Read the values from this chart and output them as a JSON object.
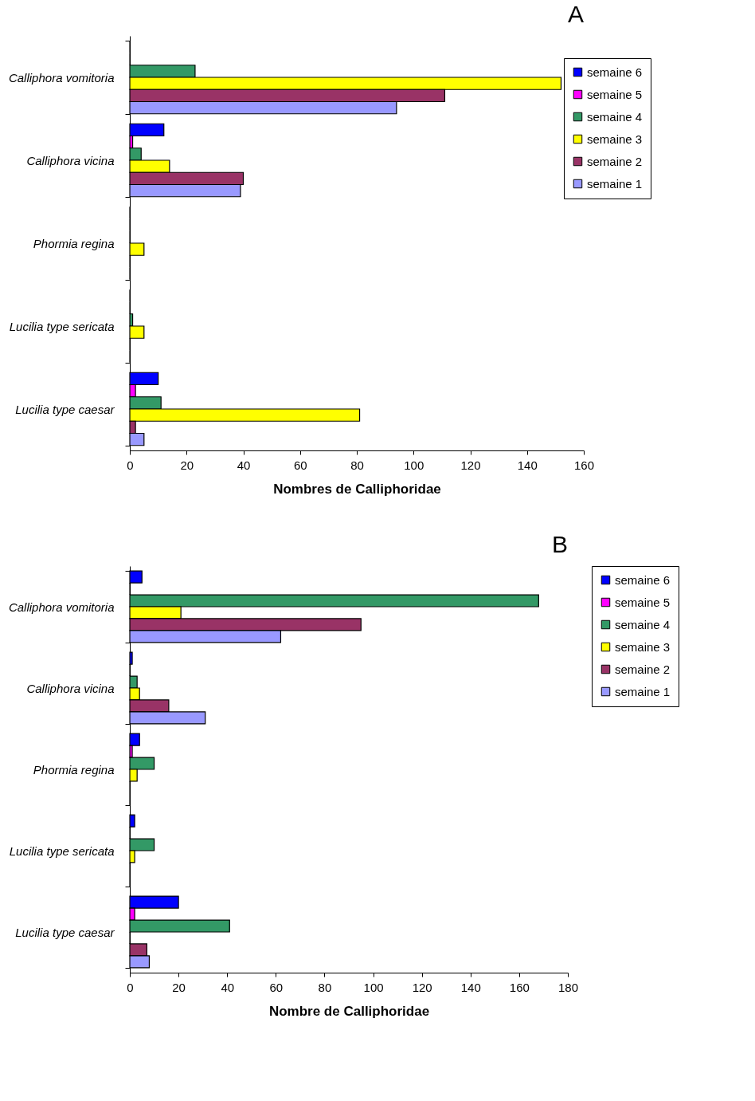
{
  "chart_data": [
    {
      "type": "bar",
      "orientation": "horizontal",
      "title": "A",
      "xlabel": "Nombres de Calliphoridae",
      "categories": [
        "Calliphora vomitoria",
        "Calliphora vicina",
        "Phormia regina",
        "Lucilia type sericata",
        "Lucilia type caesar"
      ],
      "xlim": [
        0,
        160
      ],
      "xticks": [
        0,
        20,
        40,
        60,
        80,
        100,
        120,
        140,
        160
      ],
      "grid": false,
      "legend": "top right",
      "series": [
        {
          "name": "semaine 6",
          "color": "#0000ff",
          "values": [
            0,
            12,
            0,
            0,
            10
          ]
        },
        {
          "name": "semaine 5",
          "color": "#ff00ff",
          "values": [
            0,
            1,
            0,
            0,
            2
          ]
        },
        {
          "name": "semaine 4",
          "color": "#339966",
          "values": [
            23,
            4,
            0,
            1,
            11
          ]
        },
        {
          "name": "semaine 3",
          "color": "#ffff00",
          "values": [
            152,
            14,
            5,
            5,
            81
          ]
        },
        {
          "name": "semaine 2",
          "color": "#993366",
          "values": [
            111,
            40,
            0,
            0,
            2
          ]
        },
        {
          "name": "semaine 1",
          "color": "#9999ff",
          "values": [
            94,
            39,
            0,
            0,
            5
          ]
        }
      ]
    },
    {
      "type": "bar",
      "orientation": "horizontal",
      "title": "B",
      "xlabel": "Nombre de Calliphoridae",
      "categories": [
        "Calliphora vomitoria",
        "Calliphora vicina",
        "Phormia regina",
        "Lucilia type sericata",
        "Lucilia type caesar"
      ],
      "xlim": [
        0,
        180
      ],
      "xticks": [
        0,
        20,
        40,
        60,
        80,
        100,
        120,
        140,
        160,
        180
      ],
      "grid": false,
      "legend": "right",
      "series": [
        {
          "name": "semaine 6",
          "color": "#0000ff",
          "values": [
            5,
            1,
            4,
            2,
            20
          ]
        },
        {
          "name": "semaine 5",
          "color": "#ff00ff",
          "values": [
            0,
            0,
            1,
            0,
            2
          ]
        },
        {
          "name": "semaine 4",
          "color": "#339966",
          "values": [
            168,
            3,
            10,
            10,
            41
          ]
        },
        {
          "name": "semaine 3",
          "color": "#ffff00",
          "values": [
            21,
            4,
            3,
            2,
            0
          ]
        },
        {
          "name": "semaine 2",
          "color": "#993366",
          "values": [
            95,
            16,
            0,
            0,
            7
          ]
        },
        {
          "name": "semaine 1",
          "color": "#9999ff",
          "values": [
            62,
            31,
            0,
            0,
            8
          ]
        }
      ]
    }
  ]
}
